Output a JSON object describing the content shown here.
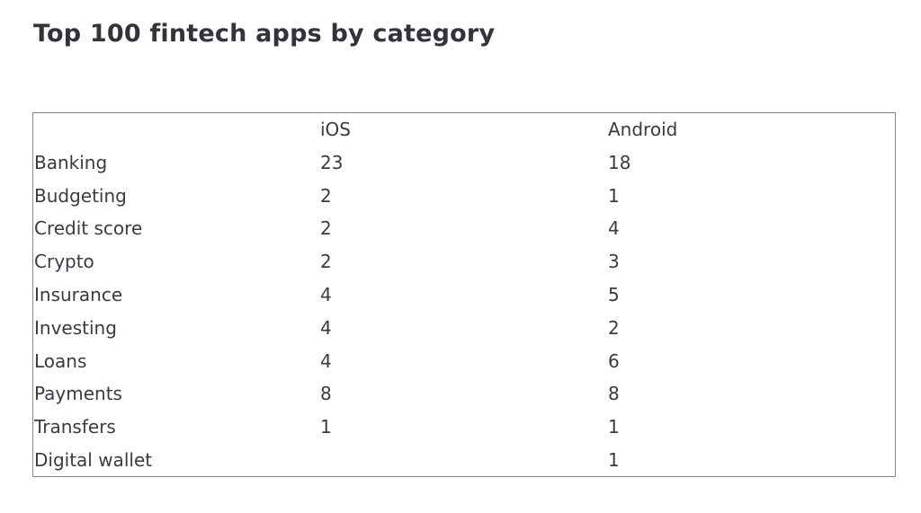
{
  "title": "Top 100 fintech apps by category",
  "table": {
    "columns": [
      "iOS",
      "Android"
    ],
    "rows": [
      {
        "label": "Banking",
        "values": [
          23,
          18
        ]
      },
      {
        "label": "Budgeting",
        "values": [
          2,
          1
        ]
      },
      {
        "label": "Credit score",
        "values": [
          2,
          4
        ]
      },
      {
        "label": "Crypto",
        "values": [
          2,
          3
        ]
      },
      {
        "label": "Insurance",
        "values": [
          4,
          5
        ]
      },
      {
        "label": "Investing",
        "values": [
          4,
          2
        ]
      },
      {
        "label": "Loans",
        "values": [
          4,
          6
        ]
      },
      {
        "label": "Payments",
        "values": [
          8,
          8
        ]
      },
      {
        "label": "Transfers",
        "values": [
          1,
          1
        ]
      },
      {
        "label": "Digital wallet",
        "values": [
          null,
          1
        ]
      }
    ]
  }
}
